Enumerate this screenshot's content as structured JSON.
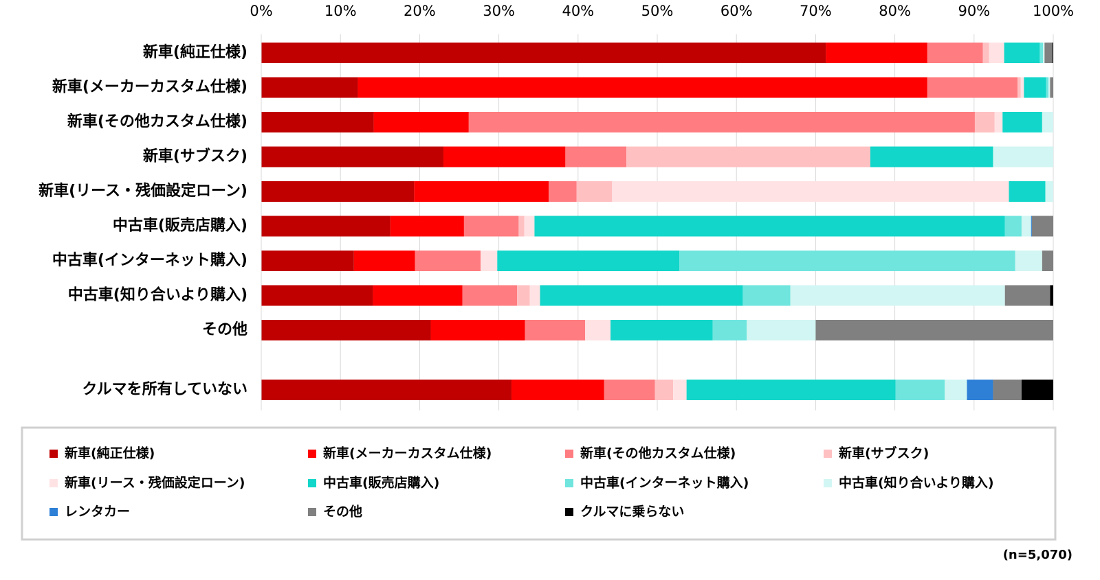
{
  "chart_data": {
    "type": "stacked_bar_horizontal",
    "categories": [
      "新車(純正仕様)",
      "新車(メーカーカスタム仕様)",
      "新車(その他カスタム仕様)",
      "新車(サブスク)",
      "新車(リース・残価設定ローン)",
      "中古車(販売店購入)",
      "中古車(インターネット購入)",
      "中古車(知り合いより購入)",
      "その他",
      "クルマを所有していない"
    ],
    "series": [
      {
        "name": "新車(純正仕様)",
        "color": "#c00000",
        "values": [
          71.3,
          12.2,
          14.2,
          23.0,
          19.3,
          16.3,
          11.7,
          14.1,
          21.4,
          31.6
        ]
      },
      {
        "name": "新車(メーカーカスタム仕様)",
        "color": "#ff0000",
        "values": [
          12.8,
          71.9,
          12.0,
          15.4,
          17.0,
          9.3,
          7.7,
          11.3,
          11.9,
          11.7
        ]
      },
      {
        "name": "新車(その他カスタム仕様)",
        "color": "#ff7c80",
        "values": [
          7.0,
          11.4,
          63.9,
          7.7,
          3.5,
          6.9,
          8.3,
          6.9,
          7.6,
          6.4
        ]
      },
      {
        "name": "新車(サブスク)",
        "color": "#ffc0c2",
        "values": [
          0.8,
          0.4,
          2.5,
          30.8,
          4.5,
          0.7,
          0,
          1.6,
          0,
          2.3
        ]
      },
      {
        "name": "新車(リース・残価設定ローン)",
        "color": "#ffe3e4",
        "values": [
          1.9,
          0.4,
          1.0,
          0,
          50.1,
          1.3,
          2.1,
          1.3,
          3.2,
          1.7
        ]
      },
      {
        "name": "中古車(販売店購入)",
        "color": "#12d6c9",
        "values": [
          4.5,
          2.8,
          5.0,
          15.5,
          4.6,
          59.4,
          23.0,
          25.6,
          12.9,
          26.4
        ]
      },
      {
        "name": "中古車(インターネット購入)",
        "color": "#6fe5de",
        "values": [
          0.4,
          0.3,
          0,
          0,
          0,
          2.1,
          42.4,
          6.0,
          4.3,
          6.2
        ]
      },
      {
        "name": "中古車(知り合いより購入)",
        "color": "#d2f6f3",
        "values": [
          0.2,
          0.2,
          1.4,
          7.6,
          1.0,
          1.2,
          3.4,
          27.1,
          8.7,
          2.8
        ]
      },
      {
        "name": "レンタカー",
        "color": "#2e7fd6",
        "values": [
          0,
          0,
          0,
          0,
          0,
          0.1,
          0,
          0,
          0,
          3.3
        ]
      },
      {
        "name": "その他",
        "color": "#808080",
        "values": [
          1.0,
          0.4,
          0,
          0,
          0,
          2.7,
          1.4,
          5.7,
          30.0,
          3.6
        ]
      },
      {
        "name": "クルマに乗らない",
        "color": "#000000",
        "values": [
          0.1,
          0,
          0,
          0,
          0,
          0,
          0,
          0.4,
          0,
          4.0
        ]
      }
    ],
    "xlim": [
      0,
      100
    ],
    "xticks": [
      {
        "value": 0,
        "label": "0%"
      },
      {
        "value": 10,
        "label": "10%"
      },
      {
        "value": 20,
        "label": "20%"
      },
      {
        "value": 30,
        "label": "30%"
      },
      {
        "value": 40,
        "label": "40%"
      },
      {
        "value": 50,
        "label": "50%"
      },
      {
        "value": 60,
        "label": "60%"
      },
      {
        "value": 70,
        "label": "70%"
      },
      {
        "value": 80,
        "label": "80%"
      },
      {
        "value": 90,
        "label": "90%"
      },
      {
        "value": 100,
        "label": "100%"
      }
    ],
    "grid": true,
    "legend": "bottom",
    "note": "(n=5,070)"
  }
}
